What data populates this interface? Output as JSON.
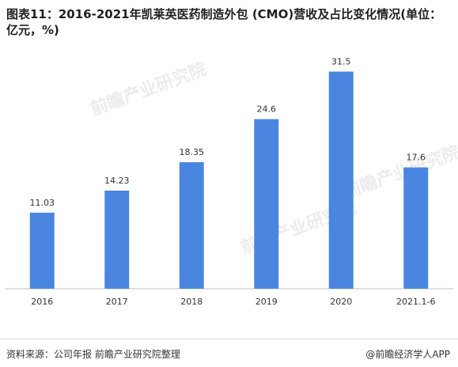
{
  "title": "图表11：2016-2021年凯莱英医药制造外包 (CMO)营收及占比变化情况(单位：亿元，%)",
  "source": "资料来源：公司年报 前瞻产业研究院整理",
  "brand": "@前瞻经济学人APP",
  "watermark": "前瞻产业研究院",
  "colors": {
    "bar": "#4a86e0",
    "axis": "#bfbfbf"
  },
  "chart_data": {
    "type": "bar",
    "title": "图表11：2016-2021年凯莱英医药制造外包 (CMO)营收及占比变化情况(单位：亿元，%)",
    "categories": [
      "2016",
      "2017",
      "2018",
      "2019",
      "2020",
      "2021.1-6"
    ],
    "values": [
      11.03,
      14.23,
      18.35,
      24.6,
      31.5,
      17.6
    ],
    "value_labels": [
      "11.03",
      "14.23",
      "18.35",
      "24.6",
      "31.5",
      "17.6"
    ],
    "xlabel": "",
    "ylabel": "",
    "ylim": [
      0,
      35
    ],
    "grid": false,
    "legend": "none"
  }
}
